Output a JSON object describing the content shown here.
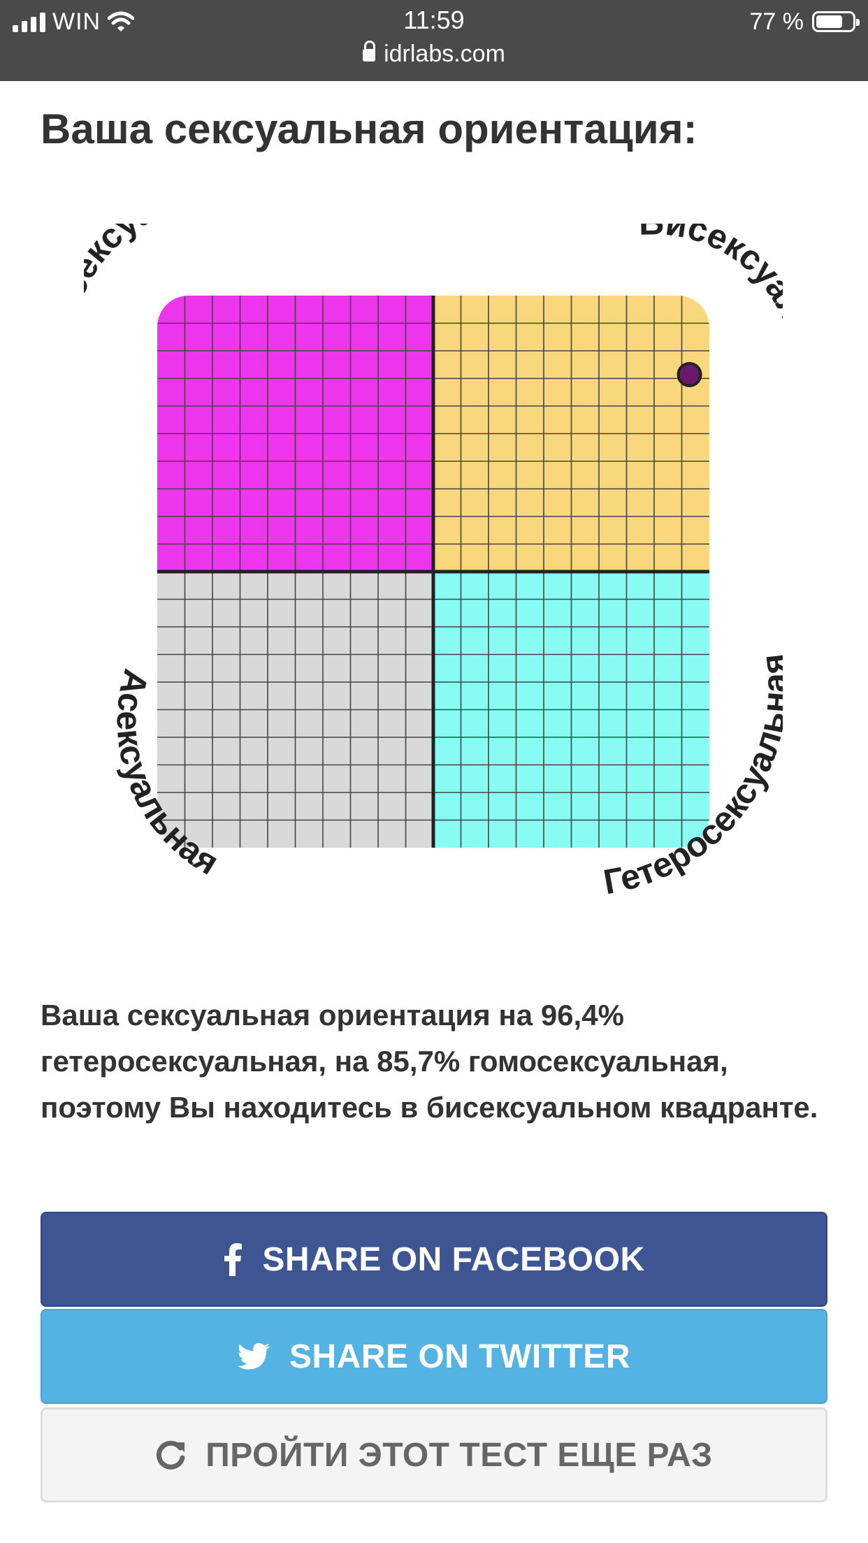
{
  "status_bar": {
    "carrier": "WIN",
    "time": "11:59",
    "battery": "77 %",
    "battery_level": 0.77,
    "url": "idrlabs.com"
  },
  "heading": "Ваша сексуальная ориентация:",
  "chart": {
    "labels": {
      "top_left": "Гомосексуальная",
      "top_right": "Бисексуальная",
      "bottom_left": "Асексуальная",
      "bottom_right": "Гетеросексуальная"
    },
    "colors": {
      "top_left": "#ee35ee",
      "top_right": "#f9d77c",
      "bottom_left": "#d9d9d9",
      "bottom_right": "#88fbf3",
      "marker": "#6a1a6c"
    },
    "heterosexual_pct": 96.4,
    "homosexual_pct": 85.7
  },
  "result_text": "Ваша сексуальная ориентация на 96,4% гетеросексуальная, на 85,7% гомосексуальная, поэтому Вы находитесь в бисексуальном квадранте.",
  "buttons": {
    "facebook": {
      "label": "SHARE ON FACEBOOK",
      "icon": "facebook-icon"
    },
    "twitter": {
      "label": "SHARE ON TWITTER",
      "icon": "twitter-icon"
    },
    "retake": {
      "label": "ПРОЙТИ ЭТОТ ТЕСТ ЕЩЕ РАЗ",
      "icon": "refresh-icon"
    }
  }
}
